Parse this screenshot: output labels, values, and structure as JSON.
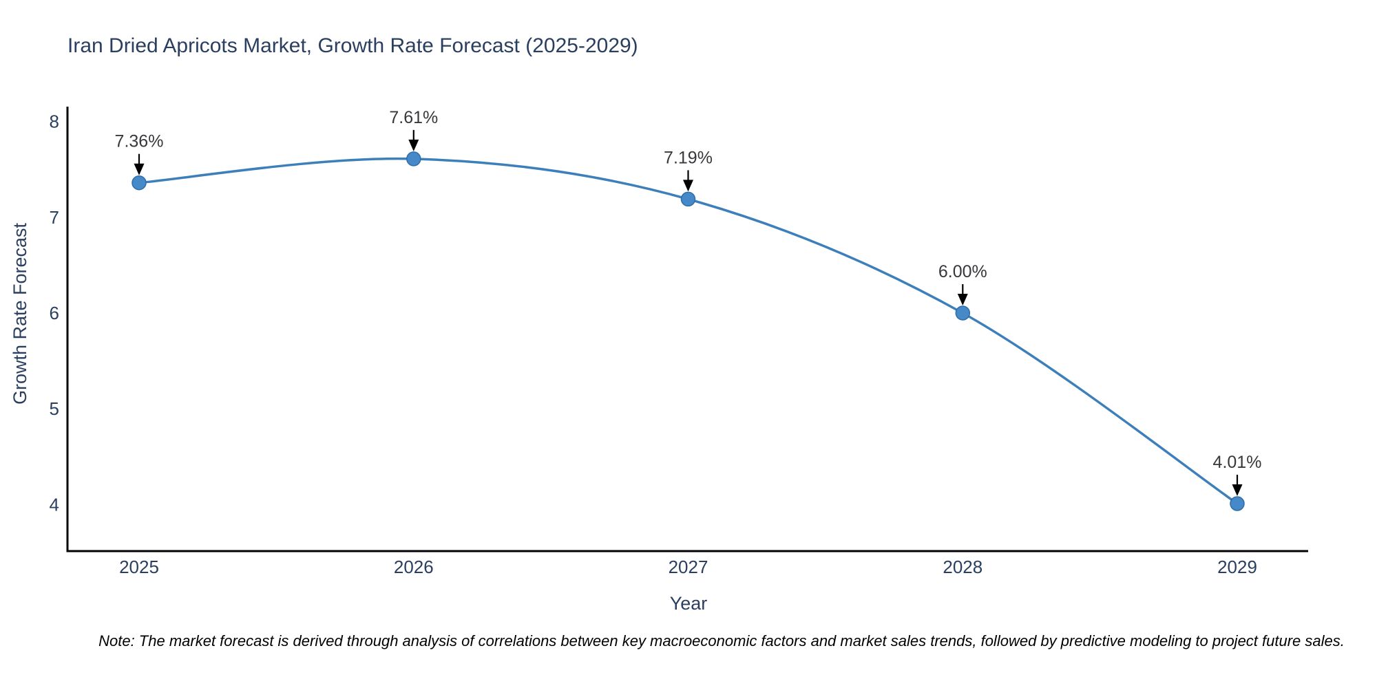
{
  "title": "Iran Dried Apricots Market, Growth Rate Forecast (2025-2029)",
  "note": "Note: The market forecast is derived through analysis of correlations between key macroeconomic factors and market sales trends, followed by predictive modeling to project future sales.",
  "chart_data": {
    "type": "line",
    "title": "Iran Dried Apricots Market, Growth Rate Forecast (2025-2029)",
    "xlabel": "Year",
    "ylabel": "Growth Rate Forecast",
    "x": [
      2025,
      2026,
      2027,
      2028,
      2029
    ],
    "values": [
      7.36,
      7.61,
      7.19,
      6.0,
      4.01
    ],
    "labels": [
      "7.36%",
      "7.61%",
      "7.19%",
      "6.00%",
      "4.01%"
    ],
    "yticks": [
      4,
      5,
      6,
      7,
      8
    ],
    "ylim": [
      3.51,
      8.16
    ],
    "xlim": [
      2024.74,
      2029.26
    ],
    "grid": false,
    "legend": "none",
    "line_shape": "spline",
    "marker": "circle",
    "annotation_arrows": true,
    "line_color": "#3d7fbb",
    "marker_color": "#4689c8",
    "marker_edge_color": "#2f6da8",
    "axis_color": "#000000",
    "text_color": "#2a3f5f",
    "annotation_color": "#36383b",
    "background_color": "#ffffff"
  }
}
